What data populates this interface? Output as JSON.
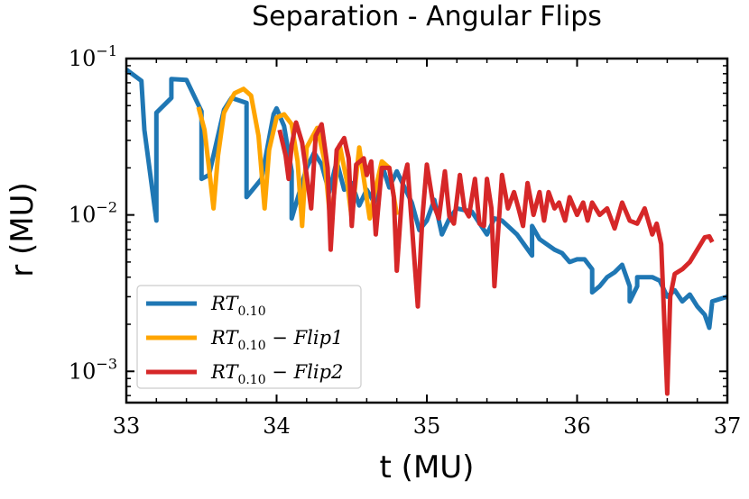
{
  "chart_data": {
    "type": "line",
    "title": "Separation - Angular Flips",
    "xlabel": "t (MU)",
    "ylabel": "r (MU)",
    "xlim": [
      33,
      37
    ],
    "ylim_log10": [
      -3.2,
      -1
    ],
    "yscale": "log",
    "x_ticks": [
      33,
      34,
      35,
      36,
      37
    ],
    "x_tick_labels": [
      "33",
      "34",
      "35",
      "36",
      "37"
    ],
    "y_ticks_log10": [
      -1,
      -2,
      -3
    ],
    "y_tick_labels": [
      {
        "base": "10",
        "exp": "−1"
      },
      {
        "base": "10",
        "exp": "−2"
      },
      {
        "base": "10",
        "exp": "−3"
      }
    ],
    "legend": {
      "position": "lower-left",
      "entries": [
        {
          "main": "RT",
          "sub": "0.10",
          "suffix": ""
        },
        {
          "main": "RT",
          "sub": "0.10",
          "suffix": " − Flip1"
        },
        {
          "main": "RT",
          "sub": "0.10",
          "suffix": " − Flip2"
        }
      ]
    },
    "series": [
      {
        "name": "RT_0.10",
        "color": "#1f77b4",
        "points": [
          [
            33.0,
            0.085
          ],
          [
            33.1,
            0.072
          ],
          [
            33.12,
            0.035
          ],
          [
            33.2,
            0.0092
          ],
          [
            33.2,
            0.045
          ],
          [
            33.3,
            0.056
          ],
          [
            33.3,
            0.074
          ],
          [
            33.4,
            0.073
          ],
          [
            33.45,
            0.058
          ],
          [
            33.5,
            0.046
          ],
          [
            33.5,
            0.017
          ],
          [
            33.55,
            0.018
          ],
          [
            33.65,
            0.047
          ],
          [
            33.7,
            0.056
          ],
          [
            33.8,
            0.052
          ],
          [
            33.8,
            0.013
          ],
          [
            33.9,
            0.017
          ],
          [
            33.98,
            0.044
          ],
          [
            34.0,
            0.048
          ],
          [
            34.05,
            0.037
          ],
          [
            34.1,
            0.019
          ],
          [
            34.1,
            0.0095
          ],
          [
            34.2,
            0.02
          ],
          [
            34.25,
            0.025
          ],
          [
            34.3,
            0.021
          ],
          [
            34.35,
            0.014
          ],
          [
            34.4,
            0.022
          ],
          [
            34.45,
            0.0145
          ],
          [
            34.5,
            0.016
          ],
          [
            34.55,
            0.0115
          ],
          [
            34.6,
            0.0145
          ],
          [
            34.65,
            0.012
          ],
          [
            34.7,
            0.021
          ],
          [
            34.75,
            0.015
          ],
          [
            34.8,
            0.019
          ],
          [
            34.9,
            0.012
          ],
          [
            34.95,
            0.008
          ],
          [
            35.0,
            0.0092
          ],
          [
            35.05,
            0.0125
          ],
          [
            35.1,
            0.0075
          ],
          [
            35.15,
            0.0095
          ],
          [
            35.2,
            0.011
          ],
          [
            35.3,
            0.0105
          ],
          [
            35.4,
            0.0075
          ],
          [
            35.45,
            0.0095
          ],
          [
            35.5,
            0.0092
          ],
          [
            35.6,
            0.0075
          ],
          [
            35.7,
            0.0055
          ],
          [
            35.7,
            0.0085
          ],
          [
            35.75,
            0.007
          ],
          [
            35.85,
            0.006
          ],
          [
            35.9,
            0.0057
          ],
          [
            35.95,
            0.005
          ],
          [
            36.0,
            0.0052
          ],
          [
            36.05,
            0.0052
          ],
          [
            36.1,
            0.0045
          ],
          [
            36.1,
            0.0032
          ],
          [
            36.15,
            0.0035
          ],
          [
            36.2,
            0.004
          ],
          [
            36.25,
            0.0043
          ],
          [
            36.3,
            0.0048
          ],
          [
            36.35,
            0.0035
          ],
          [
            36.35,
            0.0028
          ],
          [
            36.4,
            0.0035
          ],
          [
            36.4,
            0.004
          ],
          [
            36.5,
            0.004
          ],
          [
            36.55,
            0.0038
          ],
          [
            36.6,
            0.003
          ],
          [
            36.65,
            0.0033
          ],
          [
            36.7,
            0.0028
          ],
          [
            36.75,
            0.0031
          ],
          [
            36.8,
            0.0026
          ],
          [
            36.85,
            0.0023
          ],
          [
            36.88,
            0.0019
          ],
          [
            36.9,
            0.0028
          ],
          [
            37.0,
            0.003
          ]
        ]
      },
      {
        "name": "RT_0.10 - Flip1",
        "color": "#ffa500",
        "points": [
          [
            33.48,
            0.049
          ],
          [
            33.52,
            0.035
          ],
          [
            33.55,
            0.02
          ],
          [
            33.58,
            0.011
          ],
          [
            33.61,
            0.024
          ],
          [
            33.65,
            0.045
          ],
          [
            33.72,
            0.06
          ],
          [
            33.78,
            0.064
          ],
          [
            33.83,
            0.058
          ],
          [
            33.88,
            0.032
          ],
          [
            33.92,
            0.011
          ],
          [
            33.95,
            0.026
          ],
          [
            34.0,
            0.042
          ],
          [
            34.05,
            0.044
          ],
          [
            34.1,
            0.038
          ],
          [
            34.14,
            0.022
          ],
          [
            34.17,
            0.0085
          ],
          [
            34.2,
            0.027
          ],
          [
            34.27,
            0.036
          ],
          [
            34.32,
            0.022
          ],
          [
            34.36,
            0.0088
          ],
          [
            34.42,
            0.028
          ],
          [
            34.47,
            0.016
          ],
          [
            34.5,
            0.0095
          ],
          [
            34.55,
            0.027
          ],
          [
            34.62,
            0.0095
          ],
          [
            34.65,
            0.0135
          ],
          [
            34.7,
            0.022
          ],
          [
            34.75,
            0.02
          ],
          [
            34.8,
            0.01
          ]
        ]
      },
      {
        "name": "RT_0.10 - Flip2",
        "color": "#d62728",
        "points": [
          [
            34.02,
            0.035
          ],
          [
            34.06,
            0.024
          ],
          [
            34.08,
            0.017
          ],
          [
            34.1,
            0.028
          ],
          [
            34.13,
            0.039
          ],
          [
            34.17,
            0.029
          ],
          [
            34.2,
            0.018
          ],
          [
            34.23,
            0.011
          ],
          [
            34.26,
            0.032
          ],
          [
            34.3,
            0.038
          ],
          [
            34.34,
            0.02
          ],
          [
            34.36,
            0.006
          ],
          [
            34.4,
            0.026
          ],
          [
            34.45,
            0.031
          ],
          [
            34.48,
            0.023
          ],
          [
            34.5,
            0.0085
          ],
          [
            34.53,
            0.021
          ],
          [
            34.58,
            0.023
          ],
          [
            34.6,
            0.018
          ],
          [
            34.63,
            0.022
          ],
          [
            34.66,
            0.0075
          ],
          [
            34.7,
            0.02
          ],
          [
            34.75,
            0.02
          ],
          [
            34.78,
            0.013
          ],
          [
            34.8,
            0.0044
          ],
          [
            34.84,
            0.016
          ],
          [
            34.87,
            0.021
          ],
          [
            34.9,
            0.0088
          ],
          [
            34.94,
            0.0026
          ],
          [
            34.97,
            0.0095
          ],
          [
            35.0,
            0.021
          ],
          [
            35.04,
            0.012
          ],
          [
            35.08,
            0.0095
          ],
          [
            35.12,
            0.019
          ],
          [
            35.15,
            0.0098
          ],
          [
            35.18,
            0.0088
          ],
          [
            35.22,
            0.018
          ],
          [
            35.25,
            0.011
          ],
          [
            35.28,
            0.0098
          ],
          [
            35.32,
            0.017
          ],
          [
            35.35,
            0.0088
          ],
          [
            35.38,
            0.0085
          ],
          [
            35.4,
            0.017
          ],
          [
            35.43,
            0.011
          ],
          [
            35.45,
            0.0035
          ],
          [
            35.5,
            0.018
          ],
          [
            35.54,
            0.011
          ],
          [
            35.58,
            0.014
          ],
          [
            35.61,
            0.011
          ],
          [
            35.64,
            0.0085
          ],
          [
            35.67,
            0.016
          ],
          [
            35.71,
            0.01
          ],
          [
            35.75,
            0.014
          ],
          [
            35.78,
            0.0092
          ],
          [
            35.81,
            0.014
          ],
          [
            35.85,
            0.011
          ],
          [
            35.88,
            0.012
          ],
          [
            35.92,
            0.0092
          ],
          [
            35.95,
            0.013
          ],
          [
            36.0,
            0.01
          ],
          [
            36.04,
            0.012
          ],
          [
            36.07,
            0.0092
          ],
          [
            36.1,
            0.012
          ],
          [
            36.15,
            0.01
          ],
          [
            36.2,
            0.011
          ],
          [
            36.25,
            0.0082
          ],
          [
            36.3,
            0.012
          ],
          [
            36.35,
            0.0092
          ],
          [
            36.4,
            0.0088
          ],
          [
            36.45,
            0.011
          ],
          [
            36.5,
            0.0075
          ],
          [
            36.53,
            0.0088
          ],
          [
            36.56,
            0.0065
          ],
          [
            36.6,
            0.00072
          ],
          [
            36.62,
            0.003
          ],
          [
            36.65,
            0.0042
          ],
          [
            36.7,
            0.0045
          ],
          [
            36.75,
            0.005
          ],
          [
            36.8,
            0.006
          ],
          [
            36.85,
            0.0072
          ],
          [
            36.88,
            0.0073
          ],
          [
            36.9,
            0.0067
          ]
        ]
      }
    ]
  }
}
